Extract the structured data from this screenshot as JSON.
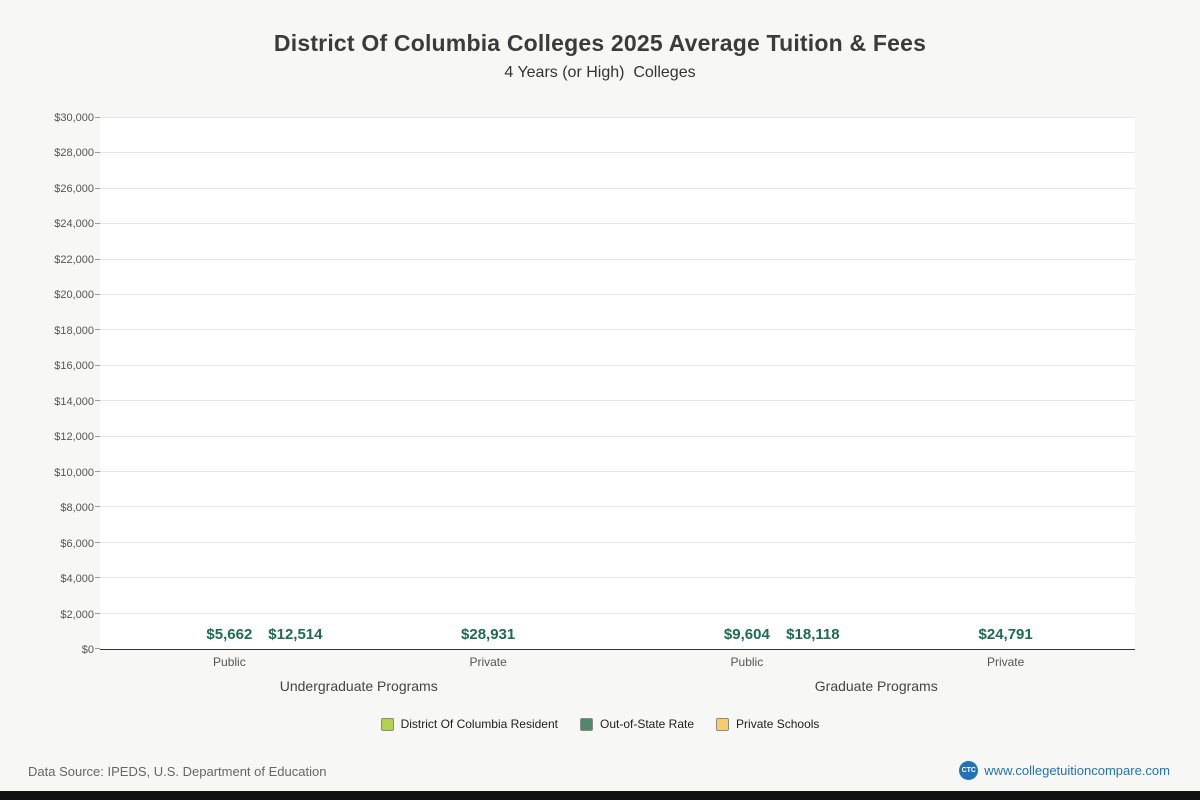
{
  "chart_data": {
    "type": "bar",
    "title": "District Of Columbia Colleges 2025 Average Tuition & Fees",
    "subtitle": "4 Years (or High)  Colleges",
    "ylabel": "",
    "ylim": [
      0,
      30000
    ],
    "ytick_step": 2000,
    "ytick_prefix": "$",
    "grid": true,
    "legend_position": "bottom",
    "value_label_color": "#1d6a52",
    "series": [
      {
        "name": "District Of Columbia Resident",
        "color": "#b2d152"
      },
      {
        "name": "Out-of-State Rate",
        "color": "#52886a"
      },
      {
        "name": "Private Schools",
        "color": "#f8cc6b"
      }
    ],
    "groups": [
      {
        "label": "Undergraduate Programs",
        "categories": [
          {
            "label": "Public",
            "bars": [
              {
                "series": "District Of Columbia Resident",
                "value": 5662,
                "label": "$5,662"
              },
              {
                "series": "Out-of-State Rate",
                "value": 12514,
                "label": "$12,514"
              }
            ]
          },
          {
            "label": "Private",
            "bars": [
              {
                "series": "Private Schools",
                "value": 28931,
                "label": "$28,931"
              }
            ]
          }
        ]
      },
      {
        "label": "Graduate Programs",
        "categories": [
          {
            "label": "Public",
            "bars": [
              {
                "series": "District Of Columbia Resident",
                "value": 9604,
                "label": "$9,604"
              },
              {
                "series": "Out-of-State Rate",
                "value": 18118,
                "label": "$18,118"
              }
            ]
          },
          {
            "label": "Private",
            "bars": [
              {
                "series": "Private Schools",
                "value": 24791,
                "label": "$24,791"
              }
            ]
          }
        ]
      }
    ]
  },
  "footer": {
    "source": "Data Source: IPEDS, U.S. Department of Education",
    "logo": "CTC",
    "website": "www.collegetuitioncompare.com"
  }
}
